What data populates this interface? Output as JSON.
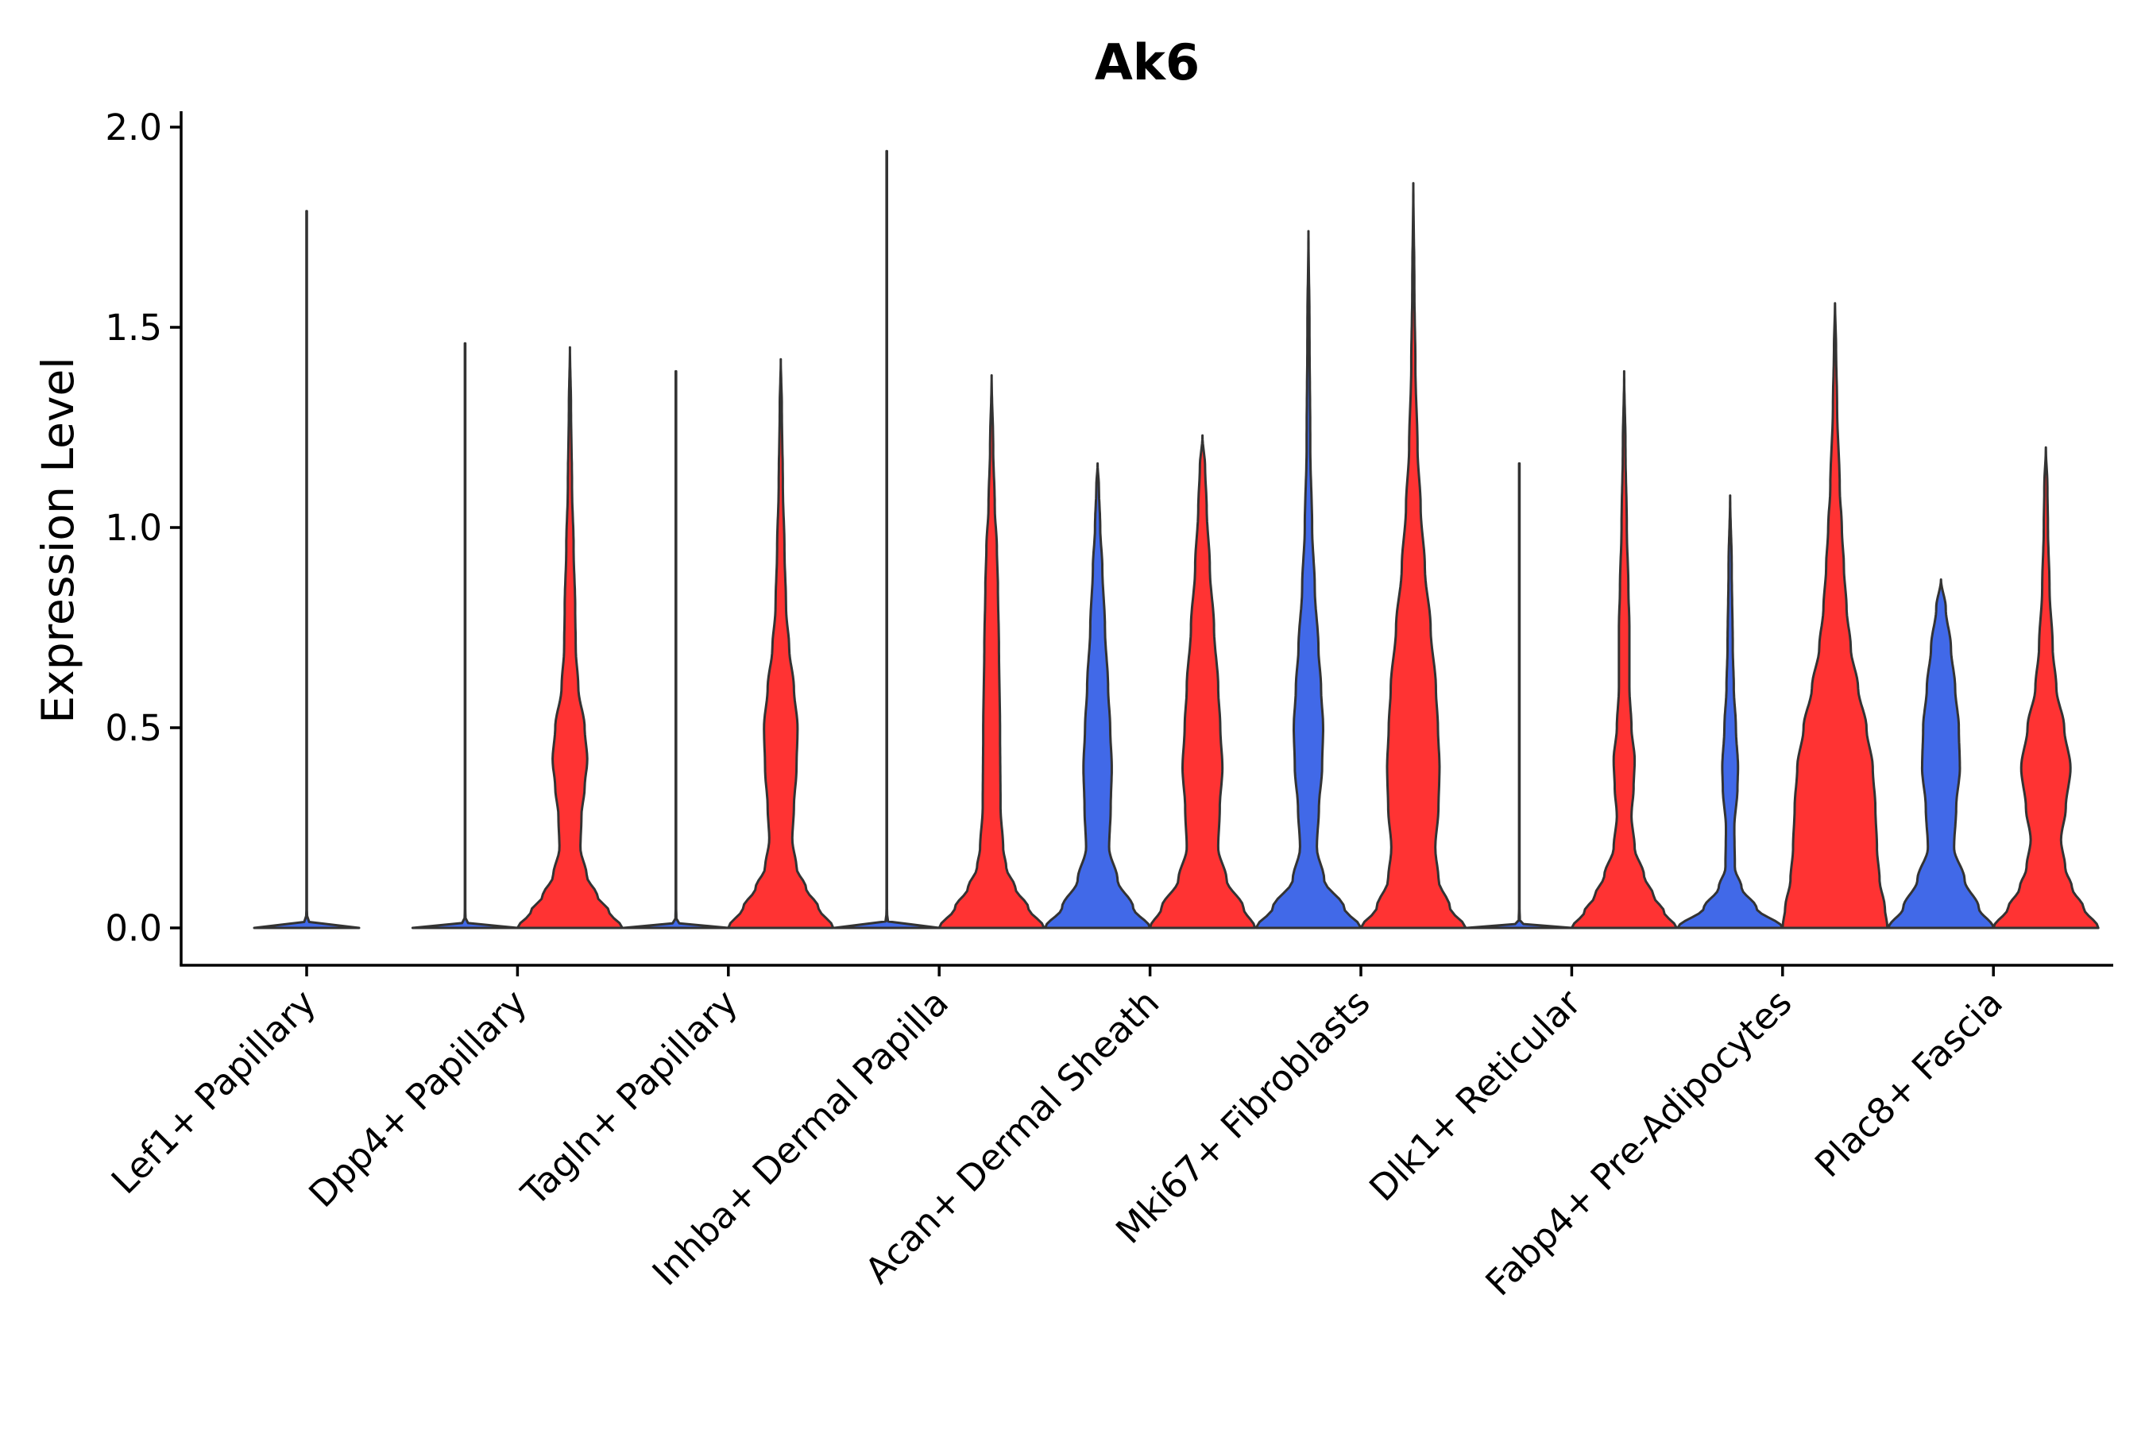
{
  "chart_data": {
    "type": "violin",
    "title": "Ak6",
    "xlabel": "",
    "ylabel": "Expression Level",
    "ylim": [
      -0.1,
      2.04
    ],
    "yticks": [
      "0.0",
      "0.5",
      "1.0",
      "1.5",
      "2.0"
    ],
    "ytick_values": [
      0.0,
      0.5,
      1.0,
      1.5,
      2.0
    ],
    "grid": false,
    "colors": {
      "blue": "#4169E8",
      "red": "#FF3333",
      "outline": "#333333"
    },
    "categories": [
      "Lef1+ Papillary",
      "Dpp4+ Papillary",
      "Tagln+ Papillary",
      "Inhba+ Dermal Papilla",
      "Acan+ Dermal Sheath",
      "Mki67+ Fibroblasts",
      "Dlk1+ Reticular",
      "Fabp4+ Pre-Adipocytes",
      "Plac8+ Fascia"
    ],
    "series": [
      {
        "name": "group-blue",
        "color": "#4169E8",
        "violins": [
          {
            "max": 1.79,
            "profile": [
              [
                0,
                1.0
              ],
              [
                0.005,
                0.15
              ],
              [
                0.02,
                0.01
              ],
              [
                0.05,
                0.004
              ],
              [
                1.79,
                0.004
              ]
            ]
          },
          {
            "max": 1.46,
            "profile": [
              [
                0,
                1.0
              ],
              [
                0.005,
                0.1
              ],
              [
                0.02,
                0.01
              ],
              [
                0.05,
                0.004
              ],
              [
                1.46,
                0.004
              ]
            ]
          },
          {
            "max": 1.39,
            "profile": [
              [
                0,
                1.0
              ],
              [
                0.005,
                0.1
              ],
              [
                0.02,
                0.01
              ],
              [
                0.05,
                0.004
              ],
              [
                1.39,
                0.004
              ]
            ]
          },
          {
            "max": 1.94,
            "profile": [
              [
                0,
                1.0
              ],
              [
                0.005,
                0.1
              ],
              [
                0.02,
                0.01
              ],
              [
                0.05,
                0.004
              ],
              [
                1.94,
                0.004
              ]
            ]
          },
          {
            "max": 1.16,
            "profile": [
              [
                0,
                1.0
              ],
              [
                0.05,
                0.68
              ],
              [
                0.12,
                0.38
              ],
              [
                0.2,
                0.22
              ],
              [
                0.3,
                0.25
              ],
              [
                0.4,
                0.27
              ],
              [
                0.5,
                0.24
              ],
              [
                0.6,
                0.2
              ],
              [
                0.75,
                0.14
              ],
              [
                0.9,
                0.09
              ],
              [
                1.0,
                0.05
              ],
              [
                1.1,
                0.025
              ],
              [
                1.16,
                0.0
              ]
            ]
          },
          {
            "max": 1.74,
            "profile": [
              [
                0,
                1.0
              ],
              [
                0.05,
                0.68
              ],
              [
                0.12,
                0.3
              ],
              [
                0.2,
                0.16
              ],
              [
                0.3,
                0.2
              ],
              [
                0.4,
                0.26
              ],
              [
                0.5,
                0.28
              ],
              [
                0.6,
                0.24
              ],
              [
                0.7,
                0.19
              ],
              [
                0.85,
                0.12
              ],
              [
                1.0,
                0.07
              ],
              [
                1.2,
                0.035
              ],
              [
                1.5,
                0.02
              ],
              [
                1.74,
                0.0
              ]
            ]
          },
          {
            "max": 1.16,
            "profile": [
              [
                0,
                1.0
              ],
              [
                0.005,
                0.1
              ],
              [
                0.02,
                0.01
              ],
              [
                0.05,
                0.004
              ],
              [
                1.16,
                0.004
              ]
            ]
          },
          {
            "max": 1.08,
            "profile": [
              [
                0,
                1.0
              ],
              [
                0.05,
                0.5
              ],
              [
                0.1,
                0.22
              ],
              [
                0.15,
                0.09
              ],
              [
                0.25,
                0.08
              ],
              [
                0.35,
                0.14
              ],
              [
                0.4,
                0.15
              ],
              [
                0.5,
                0.11
              ],
              [
                0.6,
                0.07
              ],
              [
                0.7,
                0.05
              ],
              [
                0.9,
                0.03
              ],
              [
                1.08,
                0.0
              ]
            ]
          },
          {
            "max": 0.87,
            "profile": [
              [
                0,
                1.0
              ],
              [
                0.05,
                0.72
              ],
              [
                0.12,
                0.45
              ],
              [
                0.2,
                0.25
              ],
              [
                0.3,
                0.29
              ],
              [
                0.4,
                0.36
              ],
              [
                0.5,
                0.34
              ],
              [
                0.6,
                0.27
              ],
              [
                0.7,
                0.19
              ],
              [
                0.8,
                0.09
              ],
              [
                0.87,
                0.0
              ]
            ]
          }
        ]
      },
      {
        "name": "group-red",
        "color": "#FF3333",
        "violins": [
          null,
          {
            "max": 1.45,
            "profile": [
              [
                0,
                1.0
              ],
              [
                0.04,
                0.75
              ],
              [
                0.08,
                0.52
              ],
              [
                0.13,
                0.32
              ],
              [
                0.2,
                0.2
              ],
              [
                0.28,
                0.22
              ],
              [
                0.35,
                0.28
              ],
              [
                0.42,
                0.33
              ],
              [
                0.5,
                0.28
              ],
              [
                0.6,
                0.16
              ],
              [
                0.7,
                0.11
              ],
              [
                0.8,
                0.1
              ],
              [
                0.95,
                0.07
              ],
              [
                1.1,
                0.04
              ],
              [
                1.3,
                0.02
              ],
              [
                1.45,
                0.0
              ]
            ]
          },
          {
            "max": 1.42,
            "profile": [
              [
                0,
                1.0
              ],
              [
                0.05,
                0.72
              ],
              [
                0.1,
                0.48
              ],
              [
                0.15,
                0.3
              ],
              [
                0.22,
                0.22
              ],
              [
                0.3,
                0.25
              ],
              [
                0.4,
                0.3
              ],
              [
                0.5,
                0.32
              ],
              [
                0.6,
                0.25
              ],
              [
                0.7,
                0.16
              ],
              [
                0.8,
                0.1
              ],
              [
                0.95,
                0.07
              ],
              [
                1.1,
                0.04
              ],
              [
                1.3,
                0.02
              ],
              [
                1.42,
                0.0
              ]
            ]
          },
          {
            "max": 1.38,
            "profile": [
              [
                0,
                1.0
              ],
              [
                0.05,
                0.7
              ],
              [
                0.1,
                0.45
              ],
              [
                0.15,
                0.28
              ],
              [
                0.2,
                0.22
              ],
              [
                0.3,
                0.17
              ],
              [
                0.5,
                0.16
              ],
              [
                0.7,
                0.14
              ],
              [
                0.85,
                0.12
              ],
              [
                0.95,
                0.1
              ],
              [
                1.05,
                0.06
              ],
              [
                1.2,
                0.03
              ],
              [
                1.38,
                0.0
              ]
            ]
          },
          {
            "max": 1.23,
            "profile": [
              [
                0,
                1.0
              ],
              [
                0.05,
                0.78
              ],
              [
                0.12,
                0.46
              ],
              [
                0.2,
                0.3
              ],
              [
                0.3,
                0.33
              ],
              [
                0.4,
                0.38
              ],
              [
                0.5,
                0.34
              ],
              [
                0.6,
                0.3
              ],
              [
                0.75,
                0.22
              ],
              [
                0.9,
                0.14
              ],
              [
                1.05,
                0.08
              ],
              [
                1.15,
                0.05
              ],
              [
                1.23,
                0.0
              ]
            ]
          },
          {
            "max": 1.86,
            "profile": [
              [
                0,
                1.0
              ],
              [
                0.05,
                0.7
              ],
              [
                0.12,
                0.48
              ],
              [
                0.2,
                0.42
              ],
              [
                0.3,
                0.48
              ],
              [
                0.4,
                0.5
              ],
              [
                0.5,
                0.47
              ],
              [
                0.6,
                0.43
              ],
              [
                0.75,
                0.33
              ],
              [
                0.9,
                0.22
              ],
              [
                1.05,
                0.14
              ],
              [
                1.2,
                0.08
              ],
              [
                1.4,
                0.04
              ],
              [
                1.6,
                0.02
              ],
              [
                1.86,
                0.0
              ]
            ]
          },
          {
            "max": 1.39,
            "profile": [
              [
                0,
                1.0
              ],
              [
                0.04,
                0.76
              ],
              [
                0.08,
                0.56
              ],
              [
                0.13,
                0.38
              ],
              [
                0.2,
                0.2
              ],
              [
                0.28,
                0.14
              ],
              [
                0.35,
                0.18
              ],
              [
                0.42,
                0.2
              ],
              [
                0.5,
                0.14
              ],
              [
                0.6,
                0.1
              ],
              [
                0.75,
                0.1
              ],
              [
                0.85,
                0.08
              ],
              [
                1.0,
                0.05
              ],
              [
                1.2,
                0.025
              ],
              [
                1.39,
                0.0
              ]
            ]
          },
          {
            "max": 1.56,
            "profile": [
              [
                0,
                1.0
              ],
              [
                0.05,
                0.95
              ],
              [
                0.12,
                0.85
              ],
              [
                0.2,
                0.8
              ],
              [
                0.3,
                0.77
              ],
              [
                0.4,
                0.72
              ],
              [
                0.5,
                0.6
              ],
              [
                0.6,
                0.44
              ],
              [
                0.7,
                0.3
              ],
              [
                0.8,
                0.22
              ],
              [
                0.9,
                0.17
              ],
              [
                1.0,
                0.13
              ],
              [
                1.1,
                0.09
              ],
              [
                1.3,
                0.04
              ],
              [
                1.45,
                0.02
              ],
              [
                1.56,
                0.0
              ]
            ]
          },
          {
            "max": 1.2,
            "profile": [
              [
                0,
                1.0
              ],
              [
                0.05,
                0.72
              ],
              [
                0.1,
                0.5
              ],
              [
                0.15,
                0.37
              ],
              [
                0.22,
                0.29
              ],
              [
                0.3,
                0.38
              ],
              [
                0.4,
                0.47
              ],
              [
                0.5,
                0.35
              ],
              [
                0.6,
                0.2
              ],
              [
                0.7,
                0.13
              ],
              [
                0.85,
                0.07
              ],
              [
                1.0,
                0.04
              ],
              [
                1.1,
                0.03
              ],
              [
                1.2,
                0.0
              ]
            ]
          }
        ]
      }
    ]
  }
}
